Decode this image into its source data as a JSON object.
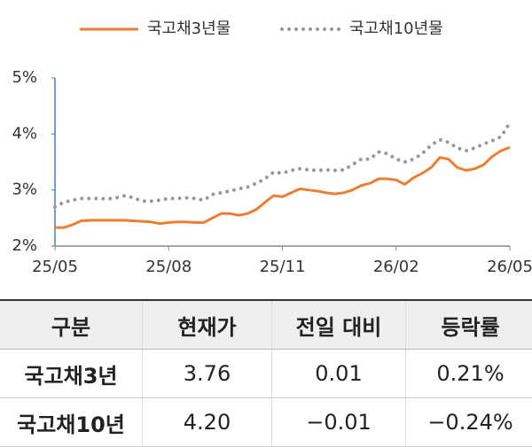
{
  "chart_data": {
    "type": "line",
    "x": [
      "25/05",
      null,
      null,
      null,
      null,
      null,
      null,
      null,
      null,
      null,
      null,
      null,
      null,
      "25/08",
      null,
      null,
      null,
      null,
      null,
      null,
      null,
      null,
      null,
      null,
      null,
      null,
      "25/11",
      null,
      null,
      null,
      null,
      null,
      null,
      null,
      null,
      null,
      null,
      null,
      null,
      "26/02",
      null,
      null,
      null,
      null,
      null,
      null,
      null,
      null,
      null,
      null,
      null,
      null,
      "26/05"
    ],
    "series": [
      {
        "name": "국고채3년물",
        "color": "#ed7d31",
        "style": "solid",
        "values": [
          2.33,
          2.33,
          2.38,
          2.45,
          2.46,
          2.46,
          2.46,
          2.46,
          2.46,
          2.45,
          2.44,
          2.43,
          2.4,
          2.42,
          2.43,
          2.43,
          2.42,
          2.42,
          2.5,
          2.58,
          2.58,
          2.55,
          2.58,
          2.65,
          2.78,
          2.9,
          2.88,
          2.95,
          3.02,
          3.0,
          2.98,
          2.95,
          2.93,
          2.95,
          3.0,
          3.08,
          3.12,
          3.2,
          3.2,
          3.18,
          3.1,
          3.22,
          3.3,
          3.4,
          3.58,
          3.55,
          3.4,
          3.35,
          3.38,
          3.45,
          3.6,
          3.7,
          3.76
        ]
      },
      {
        "name": "국고채10년물",
        "color": "#999999",
        "style": "dotted",
        "values": [
          2.7,
          2.78,
          2.82,
          2.85,
          2.85,
          2.85,
          2.84,
          2.86,
          2.9,
          2.86,
          2.8,
          2.8,
          2.82,
          2.85,
          2.85,
          2.86,
          2.85,
          2.82,
          2.92,
          2.95,
          2.98,
          3.02,
          3.05,
          3.12,
          3.2,
          3.32,
          3.3,
          3.35,
          3.38,
          3.36,
          3.35,
          3.36,
          3.35,
          3.36,
          3.45,
          3.55,
          3.55,
          3.68,
          3.65,
          3.55,
          3.5,
          3.55,
          3.65,
          3.8,
          3.9,
          3.85,
          3.75,
          3.7,
          3.75,
          3.82,
          3.88,
          3.95,
          4.2
        ]
      }
    ],
    "ylim": [
      2,
      5
    ],
    "yticks": [
      {
        "value": 2,
        "label": "2%"
      },
      {
        "value": 3,
        "label": "3%"
      },
      {
        "value": 4,
        "label": "4%"
      },
      {
        "value": 5,
        "label": "5%"
      }
    ],
    "legend": "top",
    "grid": false
  },
  "table": {
    "columns": [
      "구분",
      "현재가",
      "전일 대비",
      "등락률"
    ],
    "rows": [
      [
        "국고채3년",
        "3.76",
        "0.01",
        "0.21%"
      ],
      [
        "국고채10년",
        "4.20",
        "−0.01",
        "−0.24%"
      ]
    ]
  }
}
